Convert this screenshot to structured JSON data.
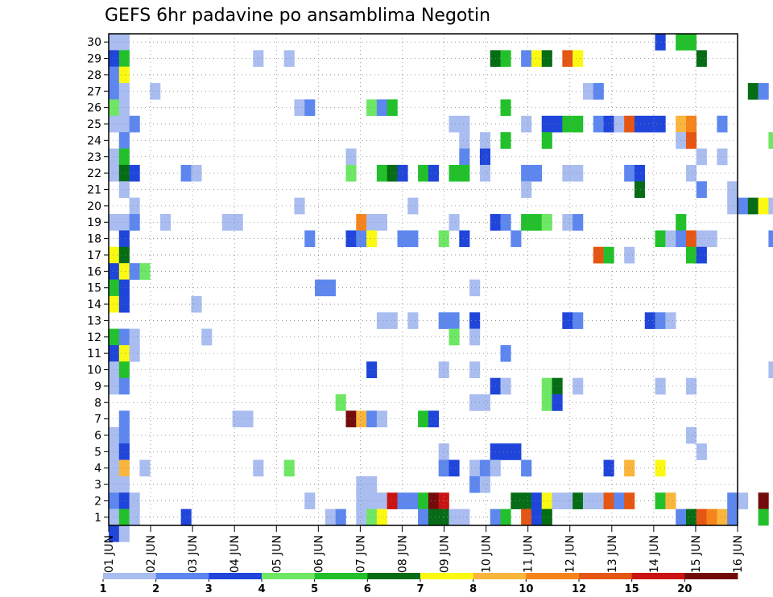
{
  "chart_data": {
    "type": "heatmap",
    "title": "GEFS 6hr padavine po ansamblima Negotin",
    "xlabel": "",
    "ylabel": "",
    "x_ticks": [
      "01 JUN",
      "02 JUN",
      "03 JUN",
      "04 JUN",
      "05 JUN",
      "06 JUN",
      "07 JUN",
      "08 JUN",
      "09 JUN",
      "10 JUN",
      "11 JUN",
      "12 JUN",
      "13 JUN",
      "14 JUN",
      "15 JUN",
      "16 JUN"
    ],
    "x_range_days": [
      0,
      15
    ],
    "y_ticks": [
      1,
      2,
      3,
      4,
      5,
      6,
      7,
      8,
      9,
      10,
      11,
      12,
      13,
      14,
      15,
      16,
      17,
      18,
      19,
      20,
      21,
      22,
      23,
      24,
      25,
      26,
      27,
      28,
      29,
      30
    ],
    "y_range": [
      0.5,
      30.5
    ],
    "grid": "dotted",
    "legend": {
      "position": "bottom",
      "labels": [
        "1",
        "2",
        "3",
        "4",
        "5",
        "6",
        "7",
        "8",
        "10",
        "12",
        "15",
        "20"
      ],
      "colors": [
        "#aabdf0",
        "#5d87ef",
        "#1f45db",
        "#6ee765",
        "#22c12b",
        "#066c15",
        "#fbf912",
        "#fab53c",
        "#f7841b",
        "#e65613",
        "#ca1412",
        "#740b0b"
      ]
    },
    "cells": [
      [
        0,
        0,
        30,
        1
      ],
      [
        1,
        0,
        29,
        3
      ],
      [
        2,
        0,
        28,
        2
      ],
      [
        3,
        0,
        27,
        2
      ],
      [
        4,
        0,
        26,
        4
      ],
      [
        5,
        0,
        25,
        1
      ],
      [
        6,
        0,
        23,
        1
      ],
      [
        7,
        0,
        22,
        1
      ],
      [
        8,
        0,
        19,
        1
      ],
      [
        9,
        0,
        17,
        7
      ],
      [
        10,
        0,
        16,
        3
      ],
      [
        11,
        0,
        15,
        5
      ],
      [
        12,
        0,
        14,
        7
      ],
      [
        13,
        0,
        12,
        5
      ],
      [
        14,
        0,
        11,
        3
      ],
      [
        15,
        0,
        10,
        1
      ],
      [
        16,
        0,
        9,
        1
      ],
      [
        17,
        0,
        6,
        1
      ],
      [
        18,
        0,
        5,
        1
      ],
      [
        19,
        0,
        4,
        1
      ],
      [
        20,
        0,
        3,
        1
      ],
      [
        21,
        0,
        2,
        2
      ],
      [
        22,
        0,
        1,
        1
      ],
      [
        23,
        0,
        0,
        3
      ],
      [
        24,
        1,
        30,
        1
      ],
      [
        25,
        1,
        29,
        5
      ],
      [
        26,
        1,
        28,
        7
      ],
      [
        27,
        1,
        27,
        1
      ],
      [
        28,
        1,
        26,
        1
      ],
      [
        29,
        1,
        25,
        1
      ],
      [
        30,
        1,
        24,
        2
      ],
      [
        31,
        1,
        23,
        5
      ],
      [
        32,
        1,
        22,
        6
      ],
      [
        33,
        1,
        21,
        1
      ],
      [
        34,
        1,
        19,
        1
      ],
      [
        35,
        1,
        18,
        3
      ],
      [
        36,
        1,
        17,
        6
      ],
      [
        37,
        1,
        16,
        7
      ],
      [
        38,
        1,
        15,
        3
      ],
      [
        39,
        1,
        14,
        3
      ],
      [
        40,
        1,
        12,
        2
      ],
      [
        41,
        1,
        11,
        7
      ],
      [
        42,
        1,
        10,
        5
      ],
      [
        43,
        1,
        9,
        2
      ],
      [
        44,
        1,
        7,
        2
      ],
      [
        45,
        1,
        6,
        2
      ],
      [
        46,
        1,
        5,
        3
      ],
      [
        47,
        1,
        4,
        8
      ],
      [
        48,
        1,
        3,
        1
      ],
      [
        49,
        1,
        2,
        3
      ],
      [
        50,
        1,
        1,
        5
      ],
      [
        51,
        1,
        0,
        1
      ],
      [
        52,
        2,
        25,
        2
      ],
      [
        53,
        2,
        22,
        3
      ],
      [
        54,
        2,
        20,
        1
      ],
      [
        55,
        2,
        19,
        2
      ],
      [
        56,
        2,
        16,
        2
      ],
      [
        57,
        2,
        12,
        1
      ],
      [
        58,
        2,
        11,
        1
      ],
      [
        59,
        2,
        2,
        1
      ],
      [
        60,
        2,
        1,
        1
      ],
      [
        61,
        3,
        16,
        4
      ],
      [
        62,
        3,
        4,
        1
      ],
      [
        63,
        4,
        27,
        1
      ],
      [
        64,
        5,
        19,
        1
      ],
      [
        65,
        7,
        22,
        2
      ],
      [
        66,
        7,
        1,
        3
      ],
      [
        67,
        8,
        22,
        1
      ],
      [
        68,
        8,
        14,
        1
      ],
      [
        69,
        9,
        12,
        1
      ],
      [
        70,
        11,
        19,
        1
      ],
      [
        71,
        12,
        19,
        1
      ],
      [
        72,
        12,
        7,
        1
      ],
      [
        73,
        13,
        7,
        1
      ],
      [
        74,
        14,
        29,
        1
      ],
      [
        75,
        14,
        4,
        1
      ],
      [
        76,
        17,
        29,
        1
      ],
      [
        77,
        17,
        4,
        4
      ],
      [
        78,
        18,
        26,
        1
      ],
      [
        79,
        18,
        20,
        1
      ],
      [
        80,
        19,
        26,
        2
      ],
      [
        81,
        19,
        18,
        2
      ],
      [
        82,
        19,
        2,
        1
      ],
      [
        83,
        20,
        15,
        2
      ],
      [
        84,
        21,
        15,
        2
      ],
      [
        85,
        21,
        1,
        1
      ],
      [
        86,
        22,
        1,
        2
      ],
      [
        87,
        22,
        8,
        4
      ],
      [
        88,
        23,
        23,
        1
      ],
      [
        89,
        23,
        22,
        4
      ],
      [
        90,
        23,
        18,
        3
      ],
      [
        91,
        23,
        7,
        12
      ],
      [
        92,
        24,
        19,
        9
      ],
      [
        93,
        24,
        18,
        2
      ],
      [
        94,
        24,
        7,
        8
      ],
      [
        95,
        24,
        3,
        1
      ],
      [
        96,
        24,
        2,
        1
      ],
      [
        97,
        24,
        1,
        1
      ],
      [
        98,
        25,
        26,
        4
      ],
      [
        99,
        25,
        19,
        1
      ],
      [
        100,
        25,
        18,
        7
      ],
      [
        101,
        25,
        10,
        3
      ],
      [
        102,
        25,
        7,
        2
      ],
      [
        103,
        25,
        3,
        1
      ],
      [
        104,
        25,
        2,
        1
      ],
      [
        105,
        25,
        1,
        4
      ],
      [
        106,
        26,
        26,
        2
      ],
      [
        107,
        26,
        22,
        5
      ],
      [
        108,
        26,
        19,
        1
      ],
      [
        109,
        26,
        13,
        1
      ],
      [
        110,
        26,
        7,
        1
      ],
      [
        111,
        26,
        2,
        1
      ],
      [
        112,
        26,
        1,
        7
      ],
      [
        113,
        27,
        26,
        5
      ],
      [
        114,
        27,
        22,
        6
      ],
      [
        115,
        27,
        13,
        1
      ],
      [
        116,
        27,
        2,
        11
      ],
      [
        117,
        28,
        22,
        3
      ],
      [
        118,
        28,
        18,
        2
      ],
      [
        119,
        28,
        2,
        2
      ],
      [
        120,
        29,
        20,
        1
      ],
      [
        121,
        29,
        18,
        2
      ],
      [
        122,
        29,
        13,
        1
      ],
      [
        123,
        29,
        2,
        2
      ],
      [
        124,
        30,
        22,
        5
      ],
      [
        125,
        30,
        7,
        5
      ],
      [
        126,
        30,
        2,
        5
      ],
      [
        127,
        30,
        1,
        2
      ],
      [
        128,
        31,
        22,
        3
      ],
      [
        129,
        31,
        7,
        3
      ],
      [
        130,
        31,
        2,
        12
      ],
      [
        131,
        31,
        1,
        6
      ],
      [
        132,
        32,
        18,
        4
      ],
      [
        133,
        32,
        13,
        2
      ],
      [
        134,
        32,
        10,
        1
      ],
      [
        135,
        32,
        5,
        1
      ],
      [
        136,
        32,
        4,
        2
      ],
      [
        137,
        32,
        2,
        11
      ],
      [
        138,
        32,
        1,
        6
      ],
      [
        139,
        33,
        25,
        1
      ],
      [
        140,
        33,
        22,
        5
      ],
      [
        141,
        33,
        19,
        1
      ],
      [
        142,
        33,
        13,
        2
      ],
      [
        143,
        33,
        12,
        4
      ],
      [
        144,
        33,
        4,
        3
      ],
      [
        145,
        33,
        1,
        1
      ],
      [
        146,
        34,
        25,
        1
      ],
      [
        147,
        34,
        24,
        1
      ],
      [
        148,
        34,
        23,
        2
      ],
      [
        149,
        34,
        22,
        5
      ],
      [
        150,
        34,
        18,
        3
      ],
      [
        151,
        34,
        1,
        1
      ],
      [
        152,
        35,
        15,
        1
      ],
      [
        153,
        35,
        13,
        3
      ],
      [
        154,
        35,
        12,
        1
      ],
      [
        155,
        35,
        10,
        1
      ],
      [
        156,
        35,
        8,
        1
      ],
      [
        157,
        35,
        4,
        1
      ],
      [
        158,
        35,
        3,
        2
      ],
      [
        159,
        36,
        24,
        1
      ],
      [
        160,
        36,
        23,
        3
      ],
      [
        161,
        36,
        22,
        1
      ],
      [
        162,
        36,
        8,
        1
      ],
      [
        163,
        36,
        4,
        2
      ],
      [
        164,
        36,
        3,
        1
      ],
      [
        165,
        37,
        29,
        6
      ],
      [
        166,
        37,
        19,
        3
      ],
      [
        167,
        37,
        9,
        3
      ],
      [
        168,
        37,
        5,
        3
      ],
      [
        169,
        37,
        4,
        1
      ],
      [
        170,
        37,
        1,
        2
      ],
      [
        171,
        38,
        29,
        5
      ],
      [
        172,
        38,
        26,
        5
      ],
      [
        173,
        38,
        24,
        5
      ],
      [
        174,
        38,
        19,
        2
      ],
      [
        175,
        38,
        11,
        2
      ],
      [
        176,
        38,
        9,
        1
      ],
      [
        177,
        38,
        5,
        3
      ],
      [
        178,
        38,
        1,
        5
      ],
      [
        179,
        39,
        18,
        2
      ],
      [
        180,
        39,
        5,
        3
      ],
      [
        181,
        39,
        2,
        6
      ],
      [
        182,
        40,
        29,
        2
      ],
      [
        183,
        40,
        25,
        1
      ],
      [
        184,
        40,
        22,
        2
      ],
      [
        185,
        40,
        21,
        1
      ],
      [
        186,
        40,
        19,
        5
      ],
      [
        187,
        40,
        4,
        2
      ],
      [
        188,
        40,
        2,
        6
      ],
      [
        189,
        40,
        1,
        10
      ],
      [
        190,
        41,
        29,
        7
      ],
      [
        191,
        41,
        22,
        2
      ],
      [
        192,
        41,
        19,
        5
      ],
      [
        193,
        41,
        2,
        3
      ],
      [
        194,
        41,
        1,
        3
      ],
      [
        195,
        42,
        29,
        6
      ],
      [
        196,
        42,
        25,
        3
      ],
      [
        197,
        42,
        24,
        5
      ],
      [
        198,
        42,
        19,
        4
      ],
      [
        199,
        42,
        9,
        4
      ],
      [
        200,
        42,
        8,
        4
      ],
      [
        201,
        42,
        2,
        7
      ],
      [
        202,
        42,
        1,
        6
      ],
      [
        203,
        43,
        25,
        3
      ],
      [
        204,
        43,
        9,
        6
      ],
      [
        205,
        43,
        8,
        3
      ],
      [
        206,
        43,
        2,
        1
      ],
      [
        207,
        44,
        29,
        10
      ],
      [
        208,
        44,
        25,
        5
      ],
      [
        209,
        44,
        22,
        1
      ],
      [
        210,
        44,
        19,
        1
      ],
      [
        211,
        44,
        13,
        3
      ],
      [
        212,
        44,
        2,
        1
      ],
      [
        213,
        45,
        29,
        7
      ],
      [
        214,
        45,
        25,
        5
      ],
      [
        215,
        45,
        22,
        1
      ],
      [
        216,
        45,
        19,
        2
      ],
      [
        217,
        45,
        13,
        2
      ],
      [
        218,
        45,
        9,
        1
      ],
      [
        219,
        45,
        2,
        6
      ],
      [
        220,
        46,
        27,
        1
      ],
      [
        221,
        46,
        2,
        1
      ],
      [
        222,
        47,
        27,
        2
      ],
      [
        223,
        47,
        25,
        2
      ],
      [
        224,
        47,
        17,
        10
      ],
      [
        225,
        47,
        2,
        1
      ],
      [
        226,
        48,
        25,
        3
      ],
      [
        227,
        48,
        17,
        5
      ],
      [
        228,
        48,
        4,
        3
      ],
      [
        229,
        48,
        2,
        10
      ],
      [
        230,
        49,
        25,
        1
      ],
      [
        231,
        49,
        2,
        2
      ],
      [
        232,
        50,
        25,
        10
      ],
      [
        233,
        50,
        22,
        2
      ],
      [
        234,
        50,
        17,
        1
      ],
      [
        235,
        50,
        4,
        8
      ],
      [
        236,
        50,
        2,
        10
      ],
      [
        237,
        51,
        25,
        3
      ],
      [
        238,
        51,
        22,
        3
      ],
      [
        239,
        51,
        21,
        6
      ],
      [
        240,
        52,
        25,
        3
      ],
      [
        241,
        52,
        13,
        3
      ],
      [
        242,
        53,
        30,
        3
      ],
      [
        243,
        53,
        25,
        3
      ],
      [
        244,
        53,
        18,
        5
      ],
      [
        245,
        53,
        13,
        2
      ],
      [
        246,
        53,
        9,
        1
      ],
      [
        247,
        53,
        4,
        7
      ],
      [
        248,
        53,
        2,
        5
      ],
      [
        249,
        54,
        18,
        1
      ],
      [
        250,
        54,
        13,
        1
      ],
      [
        251,
        54,
        2,
        8
      ],
      [
        252,
        55,
        30,
        5
      ],
      [
        253,
        55,
        25,
        8
      ],
      [
        254,
        55,
        24,
        1
      ],
      [
        255,
        55,
        19,
        5
      ],
      [
        256,
        55,
        18,
        2
      ],
      [
        257,
        55,
        1,
        2
      ],
      [
        258,
        56,
        30,
        5
      ],
      [
        259,
        56,
        25,
        9
      ],
      [
        260,
        56,
        24,
        10
      ],
      [
        261,
        56,
        22,
        1
      ],
      [
        262,
        56,
        18,
        10
      ],
      [
        263,
        56,
        17,
        5
      ],
      [
        264,
        56,
        9,
        1
      ],
      [
        265,
        56,
        6,
        1
      ],
      [
        266,
        56,
        1,
        6
      ],
      [
        267,
        57,
        29,
        6
      ],
      [
        268,
        57,
        23,
        1
      ],
      [
        269,
        57,
        21,
        2
      ],
      [
        270,
        57,
        18,
        1
      ],
      [
        271,
        57,
        17,
        3
      ],
      [
        272,
        57,
        5,
        1
      ],
      [
        273,
        57,
        1,
        10
      ],
      [
        274,
        58,
        18,
        1
      ],
      [
        275,
        58,
        1,
        9
      ],
      [
        276,
        59,
        25,
        2
      ],
      [
        277,
        59,
        23,
        1
      ],
      [
        278,
        59,
        1,
        8
      ],
      [
        279,
        60,
        1,
        2
      ],
      [
        280,
        60,
        2,
        2
      ],
      [
        281,
        60,
        21,
        1
      ],
      [
        282,
        60,
        20,
        1
      ],
      [
        283,
        61,
        20,
        2
      ],
      [
        284,
        61,
        2,
        1
      ],
      [
        285,
        62,
        20,
        6
      ],
      [
        286,
        62,
        27,
        6
      ],
      [
        287,
        63,
        20,
        7
      ],
      [
        288,
        63,
        27,
        2
      ],
      [
        289,
        63,
        2,
        12
      ],
      [
        290,
        63,
        1,
        5
      ],
      [
        291,
        64,
        24,
        4
      ],
      [
        292,
        64,
        20,
        1
      ],
      [
        293,
        64,
        18,
        2
      ],
      [
        294,
        64,
        10,
        1
      ]
    ]
  }
}
